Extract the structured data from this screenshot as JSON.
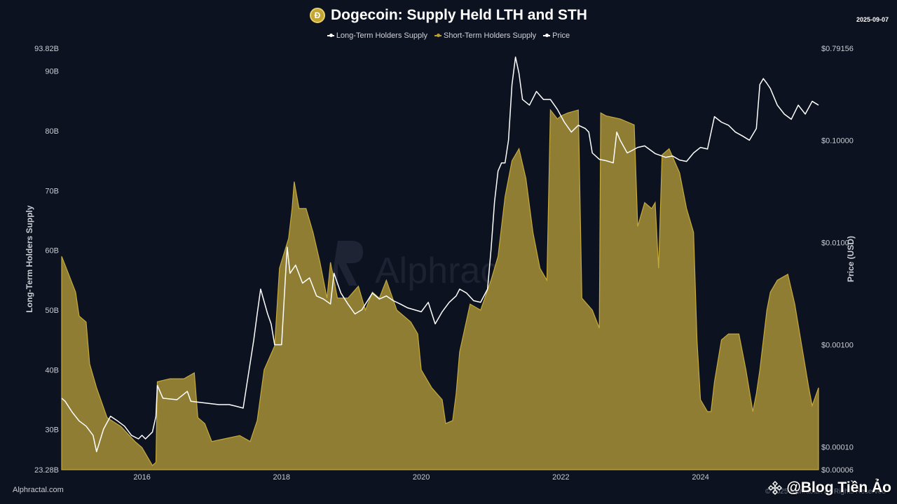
{
  "header": {
    "title": "Dogecoin: Supply Held LTH and STH",
    "date": "2025-09-07",
    "coin_icon": "dogecoin-icon",
    "coin_glyph": "Ð"
  },
  "legend": [
    {
      "label": "Long-Term Holders Supply",
      "color": "#ffffff"
    },
    {
      "label": "Short-Term Holders Supply",
      "color": "#b99f35"
    },
    {
      "label": "Price",
      "color": "#ffffff"
    }
  ],
  "footer": {
    "source": "Alphractal.com",
    "copyright": "© 2025 Alphractal. All Rights Reserved",
    "watermark": "Alphractal",
    "badge_text": "@Blog Tiền Ảo",
    "badge_icon": "binance-diamond-icon"
  },
  "chart_data": {
    "type": "area",
    "title": "Dogecoin: Supply Held LTH and STH",
    "xlabel": "",
    "ylabel": "Long-Term Holders Supply",
    "y2label": "Price (USD)",
    "grid": false,
    "legend_position": "top-center",
    "x_ticks": [
      "2016",
      "2018",
      "2020",
      "2022",
      "2024"
    ],
    "xlim": [
      2014.85,
      2025.69
    ],
    "ylim": [
      23.28,
      93.82
    ],
    "y_ticks": [
      {
        "value": 23.28,
        "label": "23.28B"
      },
      {
        "value": 30,
        "label": "30B"
      },
      {
        "value": 40,
        "label": "40B"
      },
      {
        "value": 50,
        "label": "50B"
      },
      {
        "value": 60,
        "label": "60B"
      },
      {
        "value": 70,
        "label": "70B"
      },
      {
        "value": 80,
        "label": "80B"
      },
      {
        "value": 90,
        "label": "90B"
      },
      {
        "value": 93.82,
        "label": "93.82B"
      }
    ],
    "y2_log": true,
    "y2lim": [
      6e-05,
      0.79156
    ],
    "y2_ticks": [
      {
        "value": 6e-05,
        "label": "$0.00006"
      },
      {
        "value": 0.0001,
        "label": "$0.00010"
      },
      {
        "value": 0.001,
        "label": "$0.00100"
      },
      {
        "value": 0.01,
        "label": "$0.0100"
      },
      {
        "value": 0.1,
        "label": "$0.10000"
      },
      {
        "value": 0.79156,
        "label": "$0.79156"
      }
    ],
    "series": [
      {
        "name": "Short-Term Holders Supply",
        "style": "area",
        "axis": "left",
        "color": "#b99f35",
        "points": [
          [
            2014.85,
            59.0
          ],
          [
            2014.95,
            56.0
          ],
          [
            2015.05,
            53.0
          ],
          [
            2015.1,
            49.0
          ],
          [
            2015.2,
            48.0
          ],
          [
            2015.25,
            41.0
          ],
          [
            2015.35,
            37.0
          ],
          [
            2015.5,
            32.0
          ],
          [
            2015.7,
            30.5
          ],
          [
            2015.9,
            28.0
          ],
          [
            2016.0,
            27.0
          ],
          [
            2016.1,
            25.0
          ],
          [
            2016.15,
            24.0
          ],
          [
            2016.2,
            24.5
          ],
          [
            2016.22,
            38.0
          ],
          [
            2016.4,
            38.5
          ],
          [
            2016.6,
            38.5
          ],
          [
            2016.75,
            39.5
          ],
          [
            2016.8,
            32.0
          ],
          [
            2016.9,
            31.0
          ],
          [
            2017.0,
            28.0
          ],
          [
            2017.2,
            28.5
          ],
          [
            2017.4,
            29.0
          ],
          [
            2017.55,
            28.0
          ],
          [
            2017.65,
            31.5
          ],
          [
            2017.75,
            40.0
          ],
          [
            2017.9,
            44.0
          ],
          [
            2017.97,
            57.0
          ],
          [
            2018.1,
            62.0
          ],
          [
            2018.15,
            67.0
          ],
          [
            2018.18,
            71.5
          ],
          [
            2018.25,
            67.0
          ],
          [
            2018.35,
            67.0
          ],
          [
            2018.45,
            63.0
          ],
          [
            2018.55,
            58.0
          ],
          [
            2018.65,
            52.0
          ],
          [
            2018.7,
            58.0
          ],
          [
            2018.8,
            52.0
          ],
          [
            2018.95,
            52.0
          ],
          [
            2019.1,
            54.0
          ],
          [
            2019.2,
            50.0
          ],
          [
            2019.3,
            53.0
          ],
          [
            2019.4,
            52.0
          ],
          [
            2019.5,
            55.0
          ],
          [
            2019.65,
            50.0
          ],
          [
            2019.75,
            49.0
          ],
          [
            2019.85,
            48.0
          ],
          [
            2019.95,
            46.0
          ],
          [
            2020.0,
            40.0
          ],
          [
            2020.15,
            37.0
          ],
          [
            2020.3,
            35.0
          ],
          [
            2020.35,
            31.0
          ],
          [
            2020.45,
            31.5
          ],
          [
            2020.5,
            36.0
          ],
          [
            2020.55,
            43.0
          ],
          [
            2020.7,
            51.0
          ],
          [
            2020.85,
            50.0
          ],
          [
            2021.0,
            55.0
          ],
          [
            2021.1,
            59.0
          ],
          [
            2021.2,
            69.0
          ],
          [
            2021.3,
            75.0
          ],
          [
            2021.4,
            77.0
          ],
          [
            2021.5,
            72.0
          ],
          [
            2021.6,
            63.0
          ],
          [
            2021.7,
            57.0
          ],
          [
            2021.8,
            55.0
          ],
          [
            2021.85,
            83.5
          ],
          [
            2021.95,
            82.0
          ],
          [
            2022.0,
            82.5
          ],
          [
            2022.1,
            83.0
          ],
          [
            2022.25,
            83.5
          ],
          [
            2022.3,
            52.0
          ],
          [
            2022.45,
            50.0
          ],
          [
            2022.55,
            47.0
          ],
          [
            2022.57,
            83.0
          ],
          [
            2022.65,
            82.5
          ],
          [
            2022.85,
            82.0
          ],
          [
            2023.05,
            81.0
          ],
          [
            2023.1,
            64.0
          ],
          [
            2023.2,
            68.0
          ],
          [
            2023.3,
            67.0
          ],
          [
            2023.35,
            68.0
          ],
          [
            2023.4,
            57.0
          ],
          [
            2023.45,
            76.0
          ],
          [
            2023.55,
            77.0
          ],
          [
            2023.7,
            73.0
          ],
          [
            2023.8,
            67.0
          ],
          [
            2023.9,
            63.0
          ],
          [
            2023.95,
            45.0
          ],
          [
            2024.0,
            35.0
          ],
          [
            2024.1,
            33.0
          ],
          [
            2024.15,
            33.0
          ],
          [
            2024.2,
            38.0
          ],
          [
            2024.3,
            45.0
          ],
          [
            2024.4,
            46.0
          ],
          [
            2024.55,
            46.0
          ],
          [
            2024.65,
            40.0
          ],
          [
            2024.75,
            33.0
          ],
          [
            2024.8,
            36.0
          ],
          [
            2024.85,
            40.0
          ],
          [
            2024.95,
            50.0
          ],
          [
            2025.0,
            53.0
          ],
          [
            2025.1,
            55.0
          ],
          [
            2025.25,
            56.0
          ],
          [
            2025.35,
            51.0
          ],
          [
            2025.45,
            44.0
          ],
          [
            2025.55,
            37.0
          ],
          [
            2025.6,
            34.0
          ],
          [
            2025.69,
            37.0
          ]
        ]
      },
      {
        "name": "Price",
        "style": "line",
        "axis": "right",
        "color": "#ffffff",
        "points": [
          [
            2014.85,
            0.0003
          ],
          [
            2014.9,
            0.00028
          ],
          [
            2015.0,
            0.00022
          ],
          [
            2015.1,
            0.00018
          ],
          [
            2015.2,
            0.00016
          ],
          [
            2015.3,
            0.00013
          ],
          [
            2015.35,
            9e-05
          ],
          [
            2015.45,
            0.00015
          ],
          [
            2015.55,
            0.0002
          ],
          [
            2015.65,
            0.00018
          ],
          [
            2015.75,
            0.00016
          ],
          [
            2015.85,
            0.00013
          ],
          [
            2015.95,
            0.00012
          ],
          [
            2016.0,
            0.00013
          ],
          [
            2016.05,
            0.00012
          ],
          [
            2016.15,
            0.00014
          ],
          [
            2016.2,
            0.0002
          ],
          [
            2016.22,
            0.0004
          ],
          [
            2016.3,
            0.0003
          ],
          [
            2016.5,
            0.00029
          ],
          [
            2016.65,
            0.00035
          ],
          [
            2016.7,
            0.00028
          ],
          [
            2016.9,
            0.00027
          ],
          [
            2017.1,
            0.00026
          ],
          [
            2017.25,
            0.00026
          ],
          [
            2017.35,
            0.00025
          ],
          [
            2017.45,
            0.00024
          ],
          [
            2017.5,
            0.0004
          ],
          [
            2017.6,
            0.0011
          ],
          [
            2017.65,
            0.002
          ],
          [
            2017.7,
            0.0035
          ],
          [
            2017.8,
            0.002
          ],
          [
            2017.85,
            0.0016
          ],
          [
            2017.9,
            0.001
          ],
          [
            2018.0,
            0.001
          ],
          [
            2018.05,
            0.004
          ],
          [
            2018.08,
            0.009
          ],
          [
            2018.12,
            0.005
          ],
          [
            2018.2,
            0.006
          ],
          [
            2018.3,
            0.004
          ],
          [
            2018.4,
            0.0045
          ],
          [
            2018.5,
            0.003
          ],
          [
            2018.6,
            0.0028
          ],
          [
            2018.7,
            0.0025
          ],
          [
            2018.75,
            0.005
          ],
          [
            2018.85,
            0.0032
          ],
          [
            2018.95,
            0.0025
          ],
          [
            2019.05,
            0.002
          ],
          [
            2019.15,
            0.0022
          ],
          [
            2019.3,
            0.0032
          ],
          [
            2019.4,
            0.0028
          ],
          [
            2019.5,
            0.003
          ],
          [
            2019.6,
            0.0027
          ],
          [
            2019.7,
            0.0025
          ],
          [
            2019.8,
            0.0023
          ],
          [
            2019.9,
            0.0022
          ],
          [
            2020.0,
            0.0021
          ],
          [
            2020.1,
            0.0026
          ],
          [
            2020.2,
            0.0016
          ],
          [
            2020.3,
            0.0021
          ],
          [
            2020.4,
            0.0026
          ],
          [
            2020.5,
            0.003
          ],
          [
            2020.55,
            0.0035
          ],
          [
            2020.65,
            0.0032
          ],
          [
            2020.75,
            0.0027
          ],
          [
            2020.85,
            0.0026
          ],
          [
            2020.95,
            0.0035
          ],
          [
            2021.0,
            0.0085
          ],
          [
            2021.05,
            0.025
          ],
          [
            2021.1,
            0.05
          ],
          [
            2021.15,
            0.06
          ],
          [
            2021.2,
            0.06
          ],
          [
            2021.25,
            0.1
          ],
          [
            2021.3,
            0.35
          ],
          [
            2021.35,
            0.65
          ],
          [
            2021.4,
            0.45
          ],
          [
            2021.45,
            0.25
          ],
          [
            2021.55,
            0.22
          ],
          [
            2021.65,
            0.3
          ],
          [
            2021.75,
            0.25
          ],
          [
            2021.85,
            0.25
          ],
          [
            2021.95,
            0.2
          ],
          [
            2022.05,
            0.15
          ],
          [
            2022.15,
            0.12
          ],
          [
            2022.25,
            0.14
          ],
          [
            2022.35,
            0.13
          ],
          [
            2022.4,
            0.12
          ],
          [
            2022.45,
            0.075
          ],
          [
            2022.55,
            0.065
          ],
          [
            2022.65,
            0.063
          ],
          [
            2022.75,
            0.06
          ],
          [
            2022.8,
            0.12
          ],
          [
            2022.85,
            0.1
          ],
          [
            2022.95,
            0.075
          ],
          [
            2023.0,
            0.078
          ],
          [
            2023.1,
            0.085
          ],
          [
            2023.2,
            0.088
          ],
          [
            2023.35,
            0.074
          ],
          [
            2023.5,
            0.068
          ],
          [
            2023.6,
            0.07
          ],
          [
            2023.7,
            0.064
          ],
          [
            2023.8,
            0.062
          ],
          [
            2023.9,
            0.075
          ],
          [
            2024.0,
            0.085
          ],
          [
            2024.1,
            0.082
          ],
          [
            2024.2,
            0.17
          ],
          [
            2024.3,
            0.15
          ],
          [
            2024.4,
            0.14
          ],
          [
            2024.5,
            0.12
          ],
          [
            2024.6,
            0.11
          ],
          [
            2024.7,
            0.1
          ],
          [
            2024.8,
            0.13
          ],
          [
            2024.85,
            0.35
          ],
          [
            2024.9,
            0.4
          ],
          [
            2024.95,
            0.36
          ],
          [
            2025.0,
            0.32
          ],
          [
            2025.1,
            0.22
          ],
          [
            2025.2,
            0.18
          ],
          [
            2025.3,
            0.16
          ],
          [
            2025.4,
            0.22
          ],
          [
            2025.5,
            0.18
          ],
          [
            2025.6,
            0.24
          ],
          [
            2025.69,
            0.22
          ]
        ]
      }
    ]
  }
}
